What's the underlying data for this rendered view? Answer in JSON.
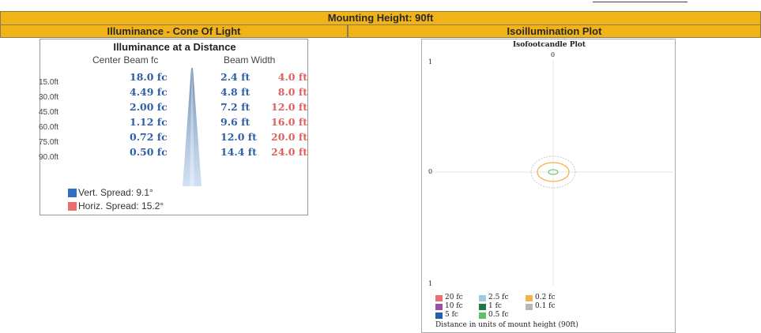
{
  "mounting_height_bar": "Mounting Height: 90ft",
  "left_header": "Illuminance - Cone Of Light",
  "right_header": "Isoillumination Plot",
  "cone": {
    "title": "Illuminance at a Distance",
    "col_center": "Center Beam fc",
    "col_width": "Beam Width",
    "rows": [
      {
        "distance": "15.0ft",
        "center_fc": "18.0 fc",
        "vert": "2.4 ft",
        "horiz": "4.0 ft"
      },
      {
        "distance": "30.0ft",
        "center_fc": "4.49 fc",
        "vert": "4.8 ft",
        "horiz": "8.0 ft"
      },
      {
        "distance": "45.0ft",
        "center_fc": "2.00 fc",
        "vert": "7.2 ft",
        "horiz": "12.0 ft"
      },
      {
        "distance": "60.0ft",
        "center_fc": "1.12 fc",
        "vert": "9.6 ft",
        "horiz": "16.0 ft"
      },
      {
        "distance": "75.0ft",
        "center_fc": "0.72 fc",
        "vert": "12.0 ft",
        "horiz": "20.0 ft"
      },
      {
        "distance": "90.0ft",
        "center_fc": "0.50 fc",
        "vert": "14.4 ft",
        "horiz": "24.0 ft"
      }
    ],
    "legend": [
      {
        "label": "Vert. Spread: 9.1°",
        "color": "#2f6fc1"
      },
      {
        "label": "Horiz. Spread: 15.2°",
        "color": "#e8706f"
      }
    ]
  },
  "plot": {
    "title": "Isofootcandle Plot",
    "top_label": "0",
    "y_top": "1",
    "y_mid": "0",
    "y_bottom": "1",
    "legend": [
      {
        "label": "20 fc",
        "color": "#e57373"
      },
      {
        "label": "2.5 fc",
        "color": "#9ccde6"
      },
      {
        "label": "0.2 fc",
        "color": "#f3b24a"
      },
      {
        "label": "10 fc",
        "color": "#9c4f9e"
      },
      {
        "label": "1 fc",
        "color": "#1e7a3c"
      },
      {
        "label": "0.1 fc",
        "color": "#b7b7b7"
      },
      {
        "label": "5 fc",
        "color": "#2461a8"
      },
      {
        "label": "0.5 fc",
        "color": "#5fbf6a"
      }
    ],
    "footer": "Distance in units of mount height (90ft)"
  }
}
